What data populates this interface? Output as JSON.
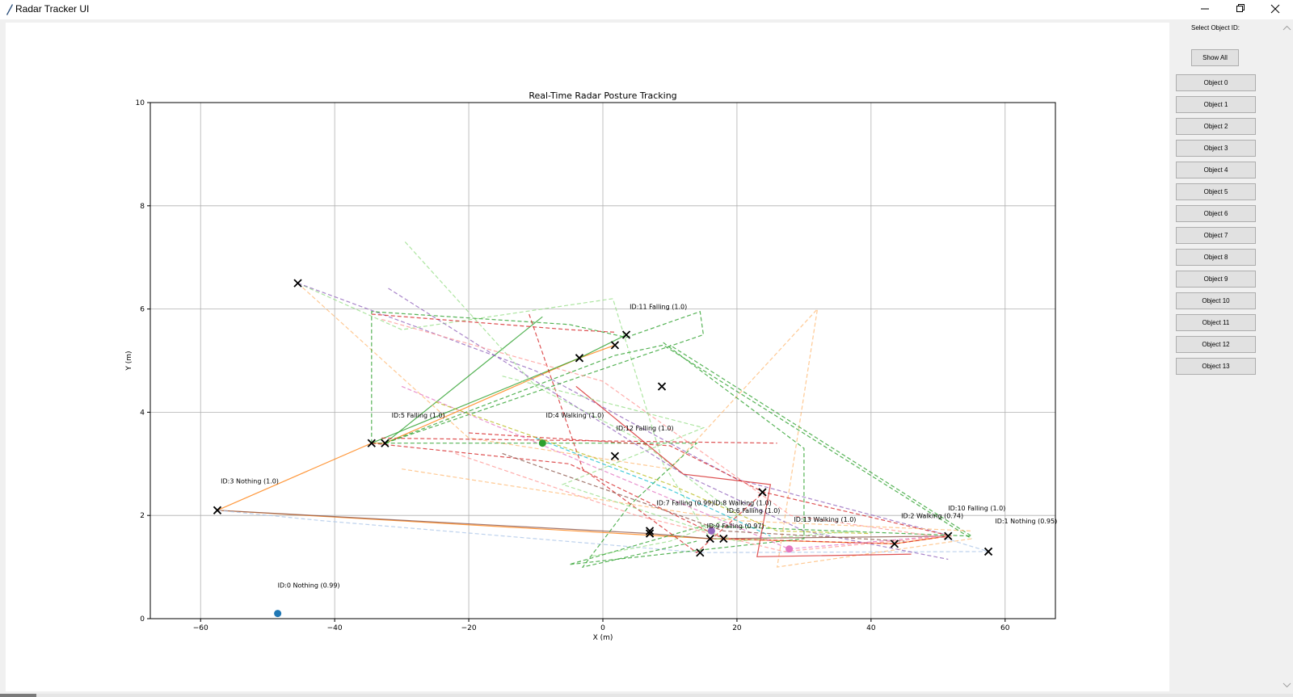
{
  "window": {
    "title": "Radar Tracker UI"
  },
  "sidebar": {
    "label": "Select Object ID:",
    "show_all": "Show All",
    "objects": [
      "Object 0",
      "Object 1",
      "Object 2",
      "Object 3",
      "Object 4",
      "Object 5",
      "Object 6",
      "Object 7",
      "Object 8",
      "Object 9",
      "Object 10",
      "Object 11",
      "Object 12",
      "Object 13"
    ]
  },
  "chart_data": {
    "type": "scatter",
    "title": "Real-Time Radar Posture Tracking",
    "xlabel": "X (m)",
    "ylabel": "Y (m)",
    "xlim": [
      -67.5,
      67.5
    ],
    "ylim": [
      0,
      10
    ],
    "xticks": [
      -60,
      -40,
      -20,
      0,
      20,
      40,
      60
    ],
    "yticks": [
      0,
      2,
      4,
      6,
      8,
      10
    ],
    "xtick_labels": [
      "−60",
      "−40",
      "−20",
      "0",
      "20",
      "40",
      "60"
    ],
    "ytick_labels": [
      "0",
      "2",
      "4",
      "6",
      "8",
      "10"
    ],
    "grid": true,
    "colors": [
      "#1f77b4",
      "#ff7f0e",
      "#2ca02c",
      "#d62728",
      "#9467bd",
      "#8c564b",
      "#e377c2",
      "#7f7f7f",
      "#bcbd22",
      "#17becf",
      "#aec7e8",
      "#ffbb78",
      "#98df8a",
      "#ff9896"
    ],
    "current_points": [
      {
        "id": 0,
        "x": -48.5,
        "y": 0.1,
        "color": "#1f77b4"
      },
      {
        "id": 4,
        "x": -9.0,
        "y": 3.4,
        "color": "#2ca02c"
      },
      {
        "id": 9,
        "x": 16.2,
        "y": 1.7,
        "color": "#9467bd"
      },
      {
        "id": 13,
        "x": 27.8,
        "y": 1.35,
        "color": "#e377c2"
      }
    ],
    "x_markers": [
      {
        "x": -57.5,
        "y": 2.1
      },
      {
        "x": -45.5,
        "y": 6.5
      },
      {
        "x": -34.5,
        "y": 3.4
      },
      {
        "x": -32.5,
        "y": 3.4
      },
      {
        "x": -3.5,
        "y": 5.05
      },
      {
        "x": 1.8,
        "y": 5.3
      },
      {
        "x": 3.5,
        "y": 5.5
      },
      {
        "x": 8.8,
        "y": 4.5
      },
      {
        "x": 1.8,
        "y": 3.15
      },
      {
        "x": 7.0,
        "y": 1.7
      },
      {
        "x": 7.0,
        "y": 1.65
      },
      {
        "x": 14.5,
        "y": 1.28
      },
      {
        "x": 16.0,
        "y": 1.55
      },
      {
        "x": 18.0,
        "y": 1.55
      },
      {
        "x": 23.8,
        "y": 2.45
      },
      {
        "x": 43.5,
        "y": 1.45
      },
      {
        "x": 51.5,
        "y": 1.6
      },
      {
        "x": 57.5,
        "y": 1.3
      }
    ],
    "annotations": [
      {
        "text": "ID:0 Nothing (0.99)",
        "x": -48.5,
        "y": 0.6
      },
      {
        "text": "ID:1 Nothing (0.95)",
        "x": 58.5,
        "y": 1.85
      },
      {
        "text": "ID:2 Walking (0.74)",
        "x": 44.5,
        "y": 1.95
      },
      {
        "text": "ID:3 Nothing (1.0)",
        "x": -57.0,
        "y": 2.62
      },
      {
        "text": "ID:4 Walking (1.0)",
        "x": -8.5,
        "y": 3.9
      },
      {
        "text": "ID:5 Falling (1.0)",
        "x": -31.5,
        "y": 3.9
      },
      {
        "text": "ID:6 Falling (1.0)",
        "x": 18.5,
        "y": 2.05
      },
      {
        "text": "ID:7 Falling (0.99)",
        "x": 8.0,
        "y": 2.2
      },
      {
        "text": "ID:8 Walking (1.0)",
        "x": 16.5,
        "y": 2.2
      },
      {
        "text": "ID:9 Falling (0.97)",
        "x": 15.5,
        "y": 1.75
      },
      {
        "text": "ID:10 Falling (1.0)",
        "x": 51.5,
        "y": 2.1
      },
      {
        "text": "ID:11 Falling (1.0)",
        "x": 4.0,
        "y": 6.0
      },
      {
        "text": "ID:12 Falling (1.0)",
        "x": 2.0,
        "y": 3.65
      },
      {
        "text": "ID:13 Walking (1.0)",
        "x": 28.5,
        "y": 1.88
      }
    ],
    "trails": [
      {
        "color": "#ff7f0e",
        "style": "solid",
        "points": [
          [
            -57.5,
            2.1
          ],
          [
            -34.5,
            3.4
          ],
          [
            -32.5,
            3.4
          ],
          [
            -3.5,
            5.05
          ],
          [
            1.8,
            5.3
          ]
        ]
      },
      {
        "color": "#ff7f0e",
        "style": "solid",
        "points": [
          [
            -57.5,
            2.1
          ],
          [
            16,
            1.55
          ],
          [
            43.5,
            1.45
          ],
          [
            51.5,
            1.6
          ]
        ]
      },
      {
        "color": "#8c564b",
        "style": "solid",
        "points": [
          [
            -57.5,
            2.1
          ],
          [
            7,
            1.65
          ],
          [
            16,
            1.55
          ],
          [
            51.5,
            1.6
          ]
        ]
      },
      {
        "color": "#2ca02c",
        "style": "solid",
        "points": [
          [
            -34.5,
            3.4
          ],
          [
            -3.5,
            5.05
          ],
          [
            3.5,
            5.5
          ]
        ]
      },
      {
        "color": "#2ca02c",
        "style": "solid",
        "points": [
          [
            -32.5,
            3.4
          ],
          [
            -9,
            5.85
          ]
        ]
      },
      {
        "color": "#aec7e8",
        "style": "dashed",
        "points": [
          [
            -57.5,
            2.1
          ],
          [
            -42,
            1.9
          ],
          [
            14.5,
            1.28
          ],
          [
            57.5,
            1.3
          ],
          [
            50,
            1.6
          ]
        ]
      },
      {
        "color": "#ffbb78",
        "style": "dashed",
        "points": [
          [
            -45.5,
            6.5
          ],
          [
            -20,
            3.5
          ],
          [
            10,
            2.9
          ],
          [
            32,
            6.0
          ],
          [
            26,
            1.0
          ],
          [
            55,
            1.55
          ]
        ]
      },
      {
        "color": "#98df8a",
        "style": "dashed",
        "points": [
          [
            -45.5,
            6.5
          ],
          [
            -30,
            5.6
          ],
          [
            1.5,
            6.2
          ],
          [
            9,
            3.0
          ],
          [
            16,
            1.55
          ],
          [
            18,
            1.55
          ]
        ]
      },
      {
        "color": "#98df8a",
        "style": "dashed",
        "points": [
          [
            -29.5,
            7.3
          ],
          [
            -10,
            4.5
          ],
          [
            5,
            3.5
          ],
          [
            20,
            2.0
          ],
          [
            10,
            1.5
          ],
          [
            -2,
            1.2
          ]
        ]
      },
      {
        "color": "#9467bd",
        "style": "dashed",
        "points": [
          [
            -45.5,
            6.5
          ],
          [
            -10,
            4.8
          ],
          [
            20,
            2.7
          ],
          [
            52,
            1.6
          ]
        ]
      },
      {
        "color": "#9467bd",
        "style": "dashed",
        "points": [
          [
            -32,
            6.4
          ],
          [
            -10,
            4.6
          ],
          [
            12,
            2.8
          ],
          [
            30,
            1.7
          ],
          [
            51.5,
            1.15
          ]
        ]
      },
      {
        "color": "#2ca02c",
        "style": "dashed",
        "points": [
          [
            -34.5,
            3.4
          ],
          [
            -34.5,
            5.95
          ],
          [
            -5,
            5.7
          ],
          [
            3.5,
            5.45
          ],
          [
            14.5,
            5.95
          ],
          [
            15,
            5.5
          ],
          [
            -32.5,
            3.4
          ]
        ]
      },
      {
        "color": "#2ca02c",
        "style": "dashed",
        "points": [
          [
            9,
            5.35
          ],
          [
            30,
            3.3
          ],
          [
            30,
            1.55
          ],
          [
            -5,
            1.05
          ],
          [
            15,
            1.8
          ],
          [
            55,
            1.6
          ],
          [
            10,
            5.3
          ]
        ]
      },
      {
        "color": "#2ca02c",
        "style": "dashed",
        "points": [
          [
            -34.5,
            3.4
          ],
          [
            14,
            3.4
          ],
          [
            4,
            2.2
          ],
          [
            -3,
            1.0
          ],
          [
            14,
            1.5
          ]
        ]
      },
      {
        "color": "#d62728",
        "style": "dashed",
        "points": [
          [
            -34.5,
            5.9
          ],
          [
            -5,
            5.6
          ],
          [
            2,
            5.55
          ]
        ]
      },
      {
        "color": "#d62728",
        "style": "dashed",
        "points": [
          [
            -11,
            5.9
          ],
          [
            -3,
            2.9
          ],
          [
            14,
            1.28
          ],
          [
            24,
            2.45
          ]
        ]
      },
      {
        "color": "#d62728",
        "style": "dashed",
        "points": [
          [
            -33,
            3.5
          ],
          [
            26,
            3.4
          ]
        ]
      },
      {
        "color": "#d62728",
        "style": "dashed",
        "points": [
          [
            -34.5,
            3.4
          ],
          [
            -5,
            3.0
          ],
          [
            18,
            1.55
          ],
          [
            43.5,
            1.45
          ],
          [
            51.5,
            1.6
          ]
        ]
      },
      {
        "color": "#d62728",
        "style": "dashed",
        "points": [
          [
            -20,
            3.6
          ],
          [
            10,
            3.35
          ],
          [
            24,
            2.45
          ],
          [
            52,
            1.6
          ]
        ]
      },
      {
        "color": "#d62728",
        "style": "solid",
        "points": [
          [
            -4,
            4.5
          ],
          [
            12,
            2.8
          ],
          [
            25,
            2.6
          ],
          [
            23,
            1.2
          ],
          [
            46,
            1.25
          ]
        ]
      },
      {
        "color": "#ff9896",
        "style": "dashed",
        "points": [
          [
            -33,
            5.8
          ],
          [
            0,
            4.6
          ],
          [
            28,
            2.0
          ],
          [
            52,
            1.55
          ]
        ]
      },
      {
        "color": "#ff9896",
        "style": "dashed",
        "points": [
          [
            -22,
            3.2
          ],
          [
            5,
            2.0
          ],
          [
            27,
            1.3
          ],
          [
            51.5,
            1.6
          ]
        ]
      },
      {
        "color": "#e377c2",
        "style": "dashed",
        "points": [
          [
            -30,
            4.5
          ],
          [
            5,
            2.6
          ],
          [
            27.8,
            1.35
          ],
          [
            50,
            1.6
          ]
        ]
      },
      {
        "color": "#bcbd22",
        "style": "dashed",
        "points": [
          [
            -25,
            4.2
          ],
          [
            10,
            2.6
          ],
          [
            26,
            1.7
          ],
          [
            40,
            1.65
          ]
        ]
      },
      {
        "color": "#ffbb78",
        "style": "dashed",
        "points": [
          [
            -30,
            2.9
          ],
          [
            20,
            1.9
          ],
          [
            55,
            1.7
          ]
        ]
      },
      {
        "color": "#98df8a",
        "style": "dashed",
        "points": [
          [
            -15,
            4.7
          ],
          [
            15,
            3.7
          ],
          [
            -6,
            2.6
          ],
          [
            20,
            1.5
          ],
          [
            38,
            1.7
          ]
        ]
      },
      {
        "color": "#2ca02c",
        "style": "dashed",
        "points": [
          [
            -32.5,
            3.4
          ],
          [
            1.8,
            5.1
          ],
          [
            9,
            5.3
          ],
          [
            55,
            1.55
          ]
        ]
      },
      {
        "color": "#17becf",
        "style": "dashed",
        "points": [
          [
            -10,
            3.5
          ],
          [
            10,
            2.5
          ],
          [
            25,
            1.6
          ]
        ]
      },
      {
        "color": "#8c564b",
        "style": "dashed",
        "points": [
          [
            -15,
            3.2
          ],
          [
            18,
            1.7
          ],
          [
            45,
            1.5
          ]
        ]
      }
    ]
  }
}
